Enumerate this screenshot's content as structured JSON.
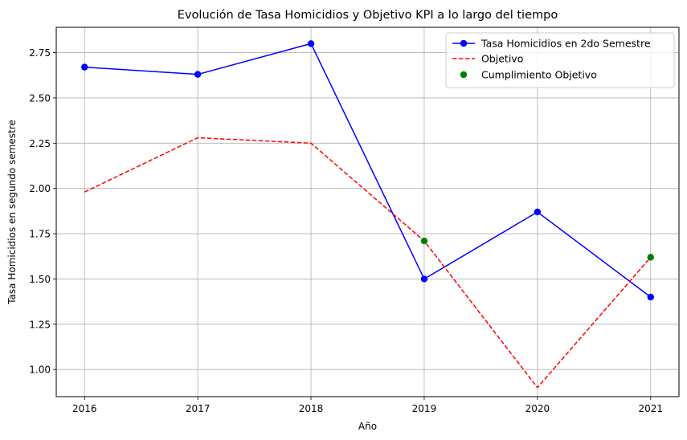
{
  "chart_data": {
    "type": "line",
    "title": "Evolución de Tasa Homicidios y Objetivo KPI a lo largo del tiempo",
    "xlabel": "Año",
    "ylabel": "Tasa Homicidios en segundo semestre",
    "x": [
      2016,
      2017,
      2018,
      2019,
      2020,
      2021
    ],
    "xlim": [
      2015.75,
      2021.25
    ],
    "ylim": [
      0.85,
      2.89
    ],
    "x_ticks": [
      "2016",
      "2017",
      "2018",
      "2019",
      "2020",
      "2021"
    ],
    "y_ticks": [
      "1.00",
      "1.25",
      "1.50",
      "1.75",
      "2.00",
      "2.25",
      "2.50",
      "2.75"
    ],
    "grid": true,
    "legend_position": "top-right",
    "series": [
      {
        "name": "Tasa Homicidios en 2do Semestre",
        "style": "solid-marker",
        "color": "#0000ff",
        "values": [
          2.67,
          2.63,
          2.8,
          1.5,
          1.87,
          1.4
        ]
      },
      {
        "name": "Objetivo",
        "style": "dashed",
        "color": "#ff0000",
        "values": [
          1.98,
          2.28,
          2.25,
          1.71,
          0.9,
          1.62
        ]
      }
    ],
    "scatter": {
      "name": "Cumplimiento Objetivo",
      "color": "#008000",
      "points": [
        {
          "x": 2019,
          "y": 1.71
        },
        {
          "x": 2021,
          "y": 1.62
        }
      ]
    }
  }
}
